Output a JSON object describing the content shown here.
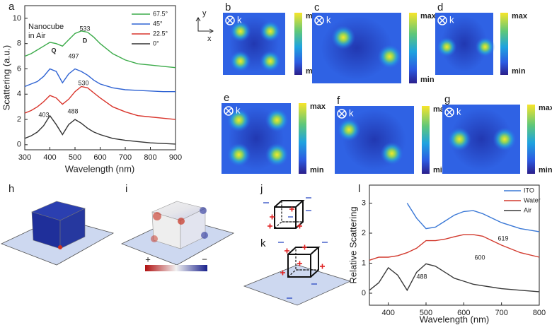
{
  "chart_data": [
    {
      "type": "line",
      "label": "a",
      "xlabel": "Wavelength (nm)",
      "ylabel": "Scattering (a.u.)",
      "note": [
        "Nanocube",
        "in Air"
      ],
      "peak_labels": [
        "403",
        "488",
        "530",
        "497",
        "533",
        "Q",
        "D"
      ],
      "x": [
        300,
        325,
        350,
        375,
        400,
        425,
        450,
        475,
        500,
        525,
        550,
        575,
        600,
        650,
        700,
        750,
        800,
        850,
        900
      ],
      "series": [
        {
          "name": "67.5°",
          "color": "#3cab4a",
          "values": [
            7.0,
            7.2,
            7.5,
            7.8,
            8.1,
            8.0,
            7.8,
            8.3,
            8.8,
            9.0,
            8.9,
            8.5,
            8.0,
            7.2,
            6.7,
            6.4,
            6.3,
            6.2,
            6.1
          ]
        },
        {
          "name": "45°",
          "color": "#2f63d3",
          "values": [
            4.6,
            4.8,
            5.0,
            5.4,
            6.0,
            5.8,
            4.9,
            5.6,
            6.0,
            5.8,
            5.5,
            5.1,
            4.8,
            4.5,
            4.35,
            4.3,
            4.25,
            4.2,
            4.2
          ]
        },
        {
          "name": "22.5°",
          "color": "#d9342b",
          "values": [
            2.5,
            2.7,
            3.0,
            3.4,
            3.9,
            3.7,
            3.2,
            3.6,
            4.2,
            4.6,
            4.5,
            4.1,
            3.7,
            3.0,
            2.6,
            2.3,
            2.2,
            2.1,
            2.0
          ]
        },
        {
          "name": "0°",
          "color": "#333333",
          "values": [
            0.5,
            0.7,
            1.0,
            1.5,
            2.3,
            1.6,
            0.8,
            1.6,
            2.0,
            1.7,
            1.3,
            1.0,
            0.8,
            0.5,
            0.35,
            0.25,
            0.15,
            0.1,
            0.05
          ]
        }
      ],
      "xlim": [
        300,
        900
      ],
      "xticks": [
        300,
        400,
        500,
        600,
        700,
        800,
        900
      ],
      "ylim": [
        -0.4,
        11
      ],
      "yticks": [
        0,
        2,
        4,
        6,
        8,
        10
      ]
    },
    {
      "type": "line",
      "label": "l",
      "xlabel": "Wavelength (nm)",
      "ylabel": "Relative Scattering",
      "peak_labels": [
        "619",
        "600",
        "488"
      ],
      "x": [
        350,
        375,
        400,
        425,
        450,
        475,
        500,
        525,
        550,
        575,
        600,
        625,
        650,
        675,
        700,
        750,
        800
      ],
      "series": [
        {
          "name": "ITO",
          "color": "#3a78d6",
          "values": [
            null,
            null,
            null,
            null,
            3.0,
            2.5,
            2.15,
            2.2,
            2.4,
            2.6,
            2.72,
            2.75,
            2.65,
            2.5,
            2.35,
            2.15,
            2.05
          ]
        },
        {
          "name": "Water",
          "color": "#d23a2e",
          "values": [
            1.1,
            1.2,
            1.2,
            1.25,
            1.35,
            1.5,
            1.75,
            1.75,
            1.8,
            1.88,
            1.95,
            1.95,
            1.9,
            1.75,
            1.6,
            1.35,
            1.2
          ]
        },
        {
          "name": "Air",
          "color": "#3a3a3a",
          "values": [
            0.1,
            0.35,
            0.85,
            0.6,
            0.1,
            0.7,
            0.98,
            0.9,
            0.7,
            0.5,
            0.4,
            0.3,
            0.25,
            0.2,
            0.15,
            0.1,
            0.05
          ]
        }
      ],
      "xlim": [
        350,
        800
      ],
      "xticks": [
        400,
        500,
        600,
        700,
        800
      ],
      "ylim": [
        -0.4,
        3.6
      ],
      "yticks": [
        0,
        1,
        2,
        3
      ]
    }
  ],
  "axes_glyph": {
    "y": "y",
    "x": "x"
  },
  "heatmaps": [
    {
      "label": "b",
      "k": "k",
      "max": "max",
      "min": "min"
    },
    {
      "label": "c",
      "k": "k",
      "max": "max",
      "min": "min"
    },
    {
      "label": "d",
      "k": "k",
      "max": "max",
      "min": "min"
    },
    {
      "label": "e",
      "k": "k",
      "max": "max",
      "min": "min"
    },
    {
      "label": "f",
      "k": "k",
      "max": "max",
      "min": "min"
    },
    {
      "label": "g",
      "k": "k",
      "max": "max",
      "min": "min"
    }
  ],
  "panels_3d": [
    {
      "label": "h"
    },
    {
      "label": "i",
      "plus": "+",
      "minus": "−"
    },
    {
      "label": "j"
    },
    {
      "label": "k"
    }
  ]
}
